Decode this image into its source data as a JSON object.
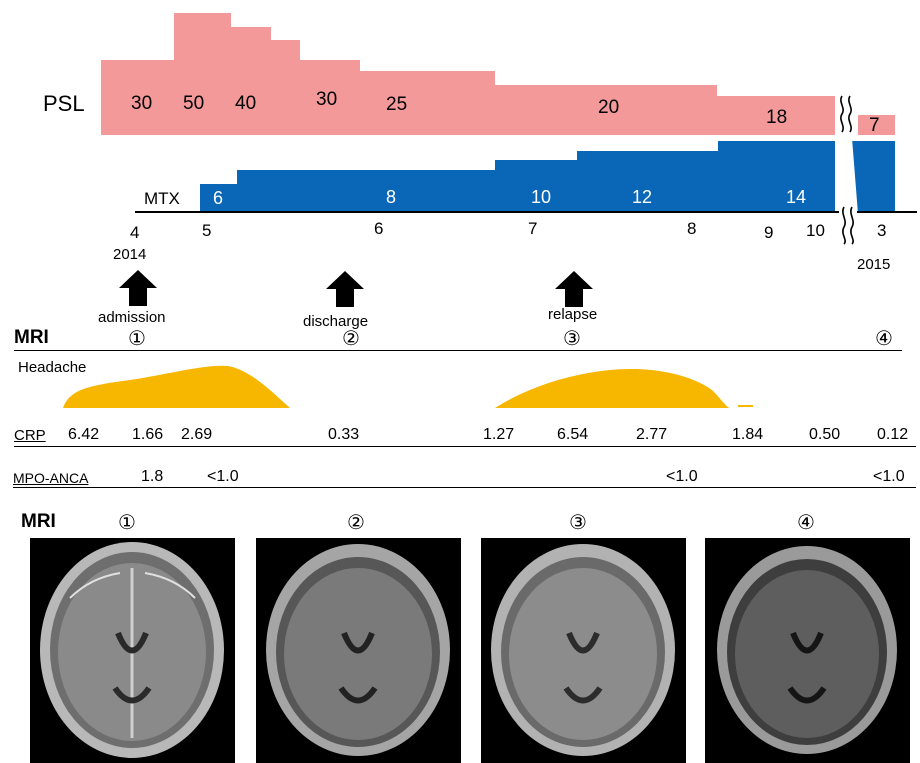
{
  "psl": {
    "label": "PSL",
    "color": "#f4999a",
    "values": [
      "30",
      "50",
      "40",
      "30",
      "25",
      "20",
      "18",
      "7"
    ]
  },
  "mtx": {
    "label": "MTX",
    "color": "#0a67b8",
    "values": [
      "6",
      "8",
      "10",
      "12",
      "14"
    ]
  },
  "timeline": {
    "months": [
      "4",
      "5",
      "6",
      "7",
      "8",
      "9",
      "10",
      "3"
    ],
    "years": [
      "2014",
      "2015"
    ]
  },
  "events": [
    {
      "label": "admission",
      "marker": "①"
    },
    {
      "label": "discharge",
      "marker": "②"
    },
    {
      "label": "relapse",
      "marker": "③"
    },
    {
      "marker": "④"
    }
  ],
  "mri_label": "MRI",
  "headache": {
    "label": "Headache",
    "color": "#f7b600"
  },
  "crp": {
    "label": "CRP",
    "values": [
      "6.42",
      "1.66",
      "2.69",
      "0.33",
      "1.27",
      "6.54",
      "2.77",
      "1.84",
      "0.50",
      "0.12"
    ]
  },
  "mpo_anca": {
    "label": "MPO-ANCA",
    "values": [
      "1.8",
      "<1.0",
      "<1.0",
      "<1.0"
    ]
  },
  "mri_images": {
    "label": "MRI",
    "markers": [
      "①",
      "②",
      "③",
      "④"
    ]
  }
}
